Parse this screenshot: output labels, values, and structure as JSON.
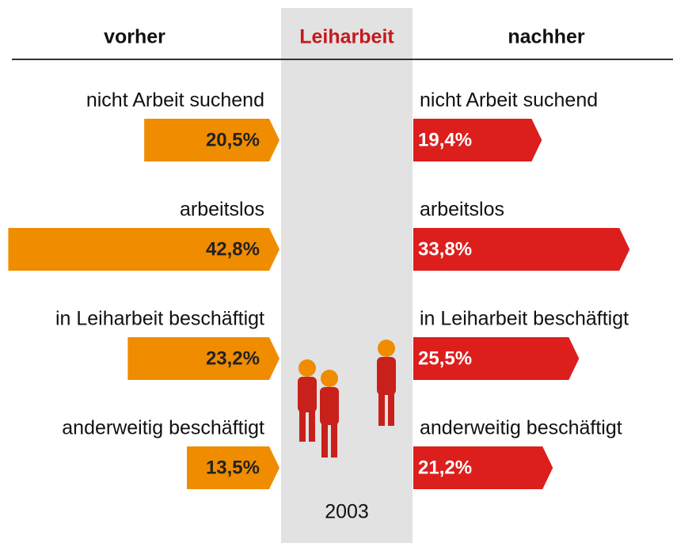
{
  "chart_data": {
    "type": "butterfly",
    "title": "Leiharbeit",
    "footnote": "2003",
    "categories": [
      "nicht Arbeit suchend",
      "arbeitslos",
      "in Leiharbeit beschäftigt",
      "anderweitig beschäftigt"
    ],
    "series": [
      {
        "name": "vorher",
        "color": "#f08c00",
        "values": [
          20.5,
          42.8,
          23.2,
          13.5
        ],
        "value_labels": [
          "20,5%",
          "42,8%",
          "23,2%",
          "13,5%"
        ]
      },
      {
        "name": "nachher",
        "color": "#dc1f1c",
        "values": [
          19.4,
          33.8,
          25.5,
          21.2
        ],
        "value_labels": [
          "19,4%",
          "33,8%",
          "25,5%",
          "21,2%"
        ]
      }
    ]
  }
}
